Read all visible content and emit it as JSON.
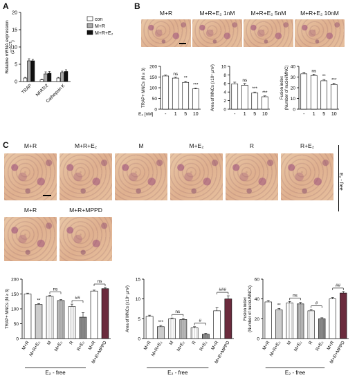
{
  "panels": {
    "A": "A",
    "B": "B",
    "C": "C"
  },
  "panelA": {
    "chart_data": {
      "type": "bar",
      "ylabel": "Relative mRNA expression (2^-ΔCT)",
      "ylabel_main": "Relative mRNA expression",
      "ylabel_sub": "(2",
      "ylabel_sup": "-ΔCT",
      "ylabel_end": ")",
      "yticks": [
        "0",
        "5",
        "10",
        "15",
        "20"
      ],
      "ylim": [
        0,
        20
      ],
      "categories": [
        "TRAP",
        "NFATc2",
        "Cathepsin K"
      ],
      "legend": [
        "con",
        "M+R",
        "M+R+E₂"
      ],
      "series": [
        {
          "name": "con",
          "values": [
            1.0,
            0.5,
            1.0
          ],
          "errors": [
            0.2,
            0.2,
            0.2
          ],
          "color": "#ffffff"
        },
        {
          "name": "M+R",
          "values": [
            6.0,
            2.2,
            2.6
          ],
          "errors": [
            0.6,
            0.6,
            0.4
          ],
          "color": "#a8a8a8"
        },
        {
          "name": "M+R+E₂",
          "values": [
            6.0,
            2.4,
            2.9
          ],
          "errors": [
            0.4,
            0.5,
            0.5
          ],
          "color": "#111111"
        }
      ]
    }
  },
  "panelB": {
    "photo_labels": [
      "M+R",
      "M+R+E₂ 1nM",
      "M+R+E₂ 5nM",
      "M+R+E₂ 10nM"
    ],
    "x_axis_label": "E₂ [nM]",
    "x_ticks": [
      "-",
      "1",
      "5",
      "10"
    ],
    "chart_data": [
      {
        "type": "bar",
        "ylabel": "TRAP+ MNCs (N ≥ 3)",
        "yticks": [
          "0",
          "50",
          "100",
          "150",
          "200"
        ],
        "ylim": [
          0,
          200
        ],
        "categories": [
          "-",
          "1",
          "5",
          "10"
        ],
        "values": [
          155,
          145,
          125,
          95
        ],
        "errors": [
          4,
          4,
          5,
          4
        ],
        "annotations": [
          "",
          "ns",
          "**",
          "***"
        ]
      },
      {
        "type": "bar",
        "ylabel": "Area of MNCs (x10⁴ μm²)",
        "yticks": [
          "0",
          "2",
          "4",
          "6",
          "8",
          "10"
        ],
        "ylim": [
          0,
          10
        ],
        "categories": [
          "-",
          "1",
          "5",
          "10"
        ],
        "values": [
          5.9,
          5.6,
          3.8,
          2.9
        ],
        "errors": [
          0.4,
          0.4,
          0.2,
          0.2
        ],
        "annotations": [
          "",
          "ns",
          "***",
          "***"
        ]
      },
      {
        "type": "bar",
        "ylabel": "Fusion index (Number of nuclei/MNC)",
        "yticks": [
          "0",
          "10",
          "20",
          "30",
          "40"
        ],
        "ylim": [
          0,
          40
        ],
        "categories": [
          "-",
          "1",
          "5",
          "10"
        ],
        "values": [
          33,
          31.5,
          26.5,
          23
        ],
        "errors": [
          1.5,
          1.2,
          1.2,
          1.2
        ],
        "annotations": [
          "",
          "ns",
          "**",
          "***"
        ]
      }
    ]
  },
  "panelC": {
    "photo_labels_row1": [
      "M+R",
      "M+R+E₂",
      "M",
      "M+E₂",
      "R",
      "R+E₂"
    ],
    "photo_labels_row2": [
      "M+R",
      "M+R+MPPD"
    ],
    "side_label": "E₂ - free",
    "group_label": "E₂ - free",
    "categories": [
      "M+R",
      "M+R+E₂",
      "M",
      "M+E₂",
      "R",
      "R+E₂",
      "M+R",
      "M+R+MPPD"
    ],
    "chart_data": [
      {
        "type": "bar",
        "ylabel": "TRAP+ MNCs (N ≥ 3)",
        "yticks": [
          "0",
          "50",
          "100",
          "150",
          "200"
        ],
        "ylim": [
          0,
          200
        ],
        "values": [
          150,
          115,
          142,
          128,
          108,
          72,
          160,
          168
        ],
        "errors": [
          3,
          3,
          3,
          3,
          8,
          15,
          3,
          4
        ],
        "annotations": [
          {
            "text": "**",
            "over": 1
          },
          {
            "text": "ns",
            "from": 2,
            "to": 3
          },
          {
            "text": "##",
            "from": 4,
            "to": 5
          },
          {
            "text": "ns",
            "from": 6,
            "to": 7
          }
        ]
      },
      {
        "type": "bar",
        "ylabel": "Area of MNCs (x10⁴ μm²)",
        "yticks": [
          "0",
          "5",
          "10",
          "15"
        ],
        "ylim": [
          0,
          15
        ],
        "values": [
          5.6,
          3.0,
          5.0,
          4.8,
          2.7,
          1.1,
          7.0,
          10.0
        ],
        "errors": [
          0.3,
          0.3,
          0.2,
          0.3,
          0.3,
          0.2,
          0.8,
          0.8
        ],
        "annotations": [
          {
            "text": "***",
            "over": 1
          },
          {
            "text": "ns",
            "from": 2,
            "to": 3
          },
          {
            "text": "#",
            "from": 4,
            "to": 5
          },
          {
            "text": "###",
            "from": 6,
            "to": 7
          }
        ]
      },
      {
        "type": "bar",
        "ylabel": "Fusion index (Number of nuclei/MNCs)",
        "yticks": [
          "0",
          "20",
          "40",
          "60"
        ],
        "ylim": [
          0,
          60
        ],
        "values": [
          37,
          29,
          36,
          35,
          28,
          20,
          40,
          46
        ],
        "errors": [
          1.5,
          1.5,
          1.5,
          1.5,
          1.5,
          1.0,
          1.5,
          1.5
        ],
        "annotations": [
          {
            "text": "**",
            "over": 1
          },
          {
            "text": "ns",
            "from": 2,
            "to": 3
          },
          {
            "text": "#",
            "from": 4,
            "to": 5
          },
          {
            "text": "##",
            "from": 6,
            "to": 7
          }
        ]
      }
    ]
  }
}
